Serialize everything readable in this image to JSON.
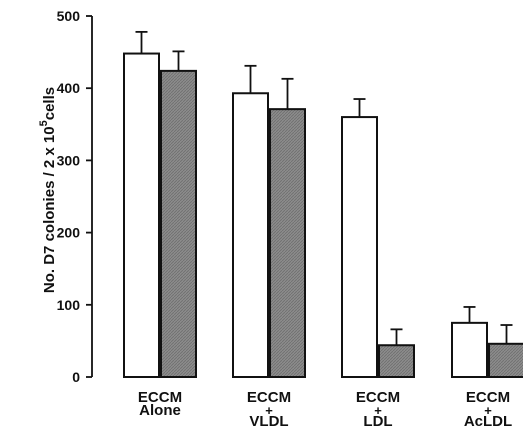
{
  "chart_data": {
    "type": "bar",
    "title": "",
    "ylabel": "No. D7 colonies / 2 x 10^5 cells",
    "ylim": [
      0,
      500
    ],
    "yticks": [
      0,
      100,
      200,
      300,
      400,
      500
    ],
    "grid": false,
    "categories": [
      {
        "lines": [
          "ECCM",
          "Alone"
        ]
      },
      {
        "lines": [
          "ECCM",
          "+",
          "VLDL"
        ]
      },
      {
        "lines": [
          "ECCM",
          "+",
          "LDL"
        ]
      },
      {
        "lines": [
          "ECCM",
          "+",
          "AcLDL"
        ]
      }
    ],
    "series": [
      {
        "fill": "white",
        "values": [
          448,
          393,
          360,
          75
        ],
        "errors": [
          30,
          38,
          25,
          22
        ]
      },
      {
        "fill": "gray",
        "values": [
          424,
          371,
          44,
          46
        ],
        "errors": [
          27,
          42,
          22,
          26
        ]
      }
    ],
    "colors": {
      "white_bar": "#ffffff",
      "gray_bar": "#8c8c8c",
      "ink": "#111111"
    }
  }
}
